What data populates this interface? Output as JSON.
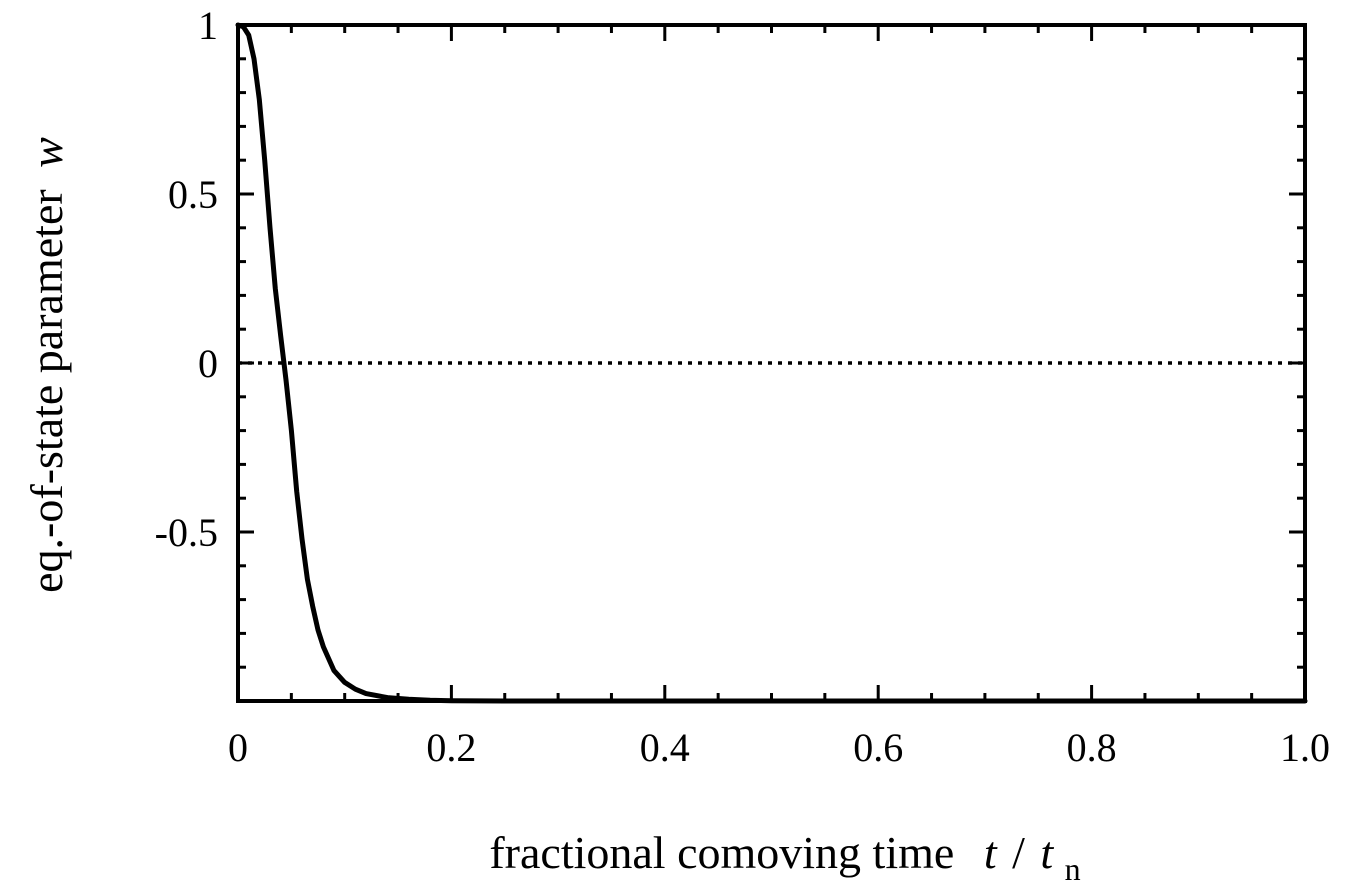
{
  "chart_data": {
    "type": "line",
    "xlabel": {
      "text": "fractional comoving time",
      "var_num": "t",
      "slash": "/",
      "var_den": "t",
      "var_den_sub": "n"
    },
    "ylabel": {
      "text": "eq.-of-state parameter",
      "var": "w"
    },
    "xlim": [
      0,
      1.0
    ],
    "ylim": [
      -1,
      1
    ],
    "xticks": [
      0,
      0.2,
      0.4,
      0.6,
      0.8,
      1.0
    ],
    "xtick_labels": [
      "0",
      "0.2",
      "0.4",
      "0.6",
      "0.8",
      "1.0"
    ],
    "yticks": [
      -0.5,
      0,
      0.5,
      1
    ],
    "ytick_labels": [
      "-0.5",
      "0",
      "0.5",
      "1"
    ],
    "grid": false,
    "reference_line": {
      "y": 0,
      "style": "dotted"
    },
    "series": [
      {
        "style": "solid",
        "x": [
          0,
          0.005,
          0.01,
          0.015,
          0.02,
          0.025,
          0.03,
          0.035,
          0.04,
          0.045,
          0.05,
          0.055,
          0.06,
          0.065,
          0.07,
          0.075,
          0.08,
          0.09,
          0.1,
          0.11,
          0.12,
          0.14,
          0.16,
          0.18,
          0.2,
          0.25,
          0.3,
          0.4,
          0.5,
          0.6,
          0.7,
          0.8,
          0.9,
          1.0
        ],
        "y": [
          1,
          0.995,
          0.97,
          0.9,
          0.78,
          0.6,
          0.4,
          0.22,
          0.08,
          -0.05,
          -0.2,
          -0.38,
          -0.52,
          -0.64,
          -0.72,
          -0.79,
          -0.84,
          -0.91,
          -0.945,
          -0.965,
          -0.978,
          -0.99,
          -0.995,
          -0.998,
          -0.999,
          -1,
          -1,
          -1,
          -1,
          -1,
          -1,
          -1,
          -1,
          -1
        ]
      }
    ]
  }
}
